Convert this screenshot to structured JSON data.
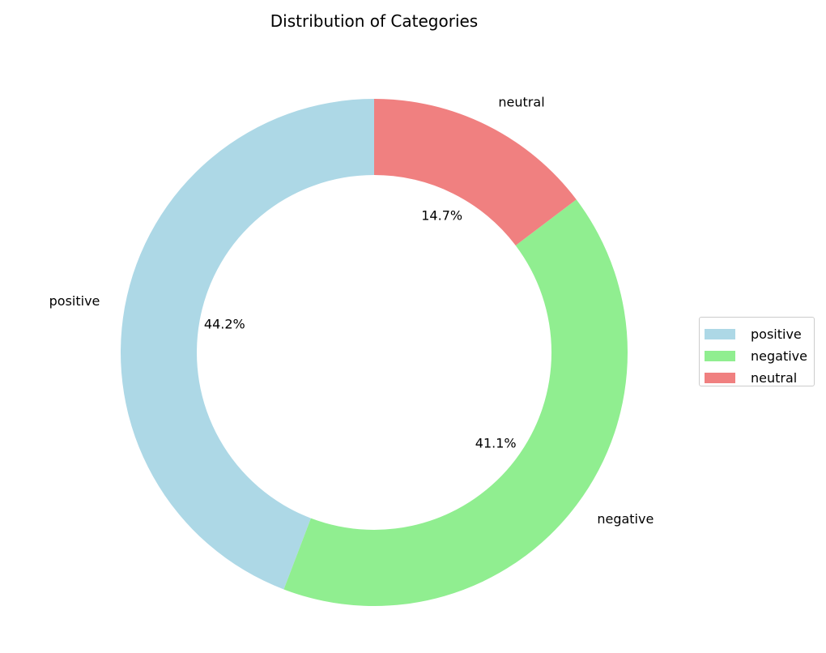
{
  "chart_data": {
    "type": "pie",
    "donut": true,
    "title": "Distribution of Categories",
    "labels": [
      "positive",
      "negative",
      "neutral"
    ],
    "values": [
      44.2,
      41.1,
      14.7
    ],
    "percent_labels": [
      "44.2%",
      "41.1%",
      "14.7%"
    ],
    "colors": [
      "#add8e6",
      "#90ee90",
      "#f08080"
    ],
    "start_angle_deg": 90,
    "direction": "counterclockwise",
    "legend": {
      "placement": "right",
      "entries": [
        "positive",
        "negative",
        "neutral"
      ]
    }
  }
}
